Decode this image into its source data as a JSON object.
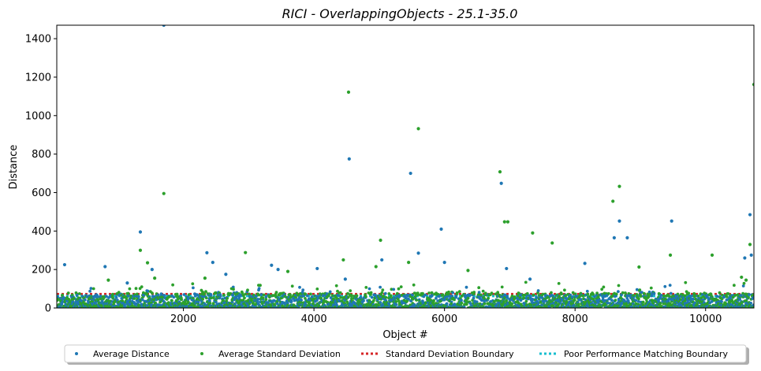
{
  "chart_data": {
    "type": "scatter",
    "title": "RICI - OverlappingObjects - 25.1-35.0",
    "xlabel": "Object #",
    "ylabel": "Distance",
    "xlim": [
      60,
      10740
    ],
    "ylim": [
      0,
      1470
    ],
    "x_ticks": [
      2000,
      4000,
      6000,
      8000,
      10000
    ],
    "y_ticks": [
      0,
      200,
      400,
      600,
      800,
      1000,
      1200,
      1400
    ],
    "grid": false,
    "legend_placement": "bottom-center",
    "n_points_per_series": 10700,
    "series": [
      {
        "name": "Average Distance",
        "kind": "scatter",
        "color": "#1f77b4",
        "baseline_band": [
          0,
          70
        ],
        "notable_points": [
          {
            "x": 180,
            "y": 225
          },
          {
            "x": 800,
            "y": 215
          },
          {
            "x": 1140,
            "y": 130
          },
          {
            "x": 1340,
            "y": 395
          },
          {
            "x": 1520,
            "y": 200
          },
          {
            "x": 1700,
            "y": 1470
          },
          {
            "x": 2360,
            "y": 287
          },
          {
            "x": 2450,
            "y": 237
          },
          {
            "x": 2650,
            "y": 175
          },
          {
            "x": 3350,
            "y": 222
          },
          {
            "x": 3450,
            "y": 200
          },
          {
            "x": 4050,
            "y": 205
          },
          {
            "x": 4480,
            "y": 150
          },
          {
            "x": 4540,
            "y": 775
          },
          {
            "x": 5040,
            "y": 250
          },
          {
            "x": 5480,
            "y": 700
          },
          {
            "x": 5600,
            "y": 285
          },
          {
            "x": 5950,
            "y": 410
          },
          {
            "x": 6000,
            "y": 237
          },
          {
            "x": 6870,
            "y": 648
          },
          {
            "x": 6950,
            "y": 205
          },
          {
            "x": 7310,
            "y": 150
          },
          {
            "x": 8150,
            "y": 232
          },
          {
            "x": 8600,
            "y": 365
          },
          {
            "x": 8680,
            "y": 452
          },
          {
            "x": 8800,
            "y": 365
          },
          {
            "x": 9480,
            "y": 452
          },
          {
            "x": 10680,
            "y": 485
          },
          {
            "x": 10700,
            "y": 275
          },
          {
            "x": 10600,
            "y": 260
          }
        ]
      },
      {
        "name": "Average Standard Deviation",
        "kind": "scatter",
        "color": "#2ca02c",
        "baseline_band": [
          0,
          80
        ],
        "notable_points": [
          {
            "x": 850,
            "y": 145
          },
          {
            "x": 1340,
            "y": 300
          },
          {
            "x": 1450,
            "y": 235
          },
          {
            "x": 1560,
            "y": 155
          },
          {
            "x": 1700,
            "y": 595
          },
          {
            "x": 2330,
            "y": 155
          },
          {
            "x": 2950,
            "y": 288
          },
          {
            "x": 3600,
            "y": 190
          },
          {
            "x": 4450,
            "y": 250
          },
          {
            "x": 4530,
            "y": 1122
          },
          {
            "x": 4950,
            "y": 215
          },
          {
            "x": 5020,
            "y": 352
          },
          {
            "x": 5450,
            "y": 237
          },
          {
            "x": 5600,
            "y": 932
          },
          {
            "x": 6360,
            "y": 195
          },
          {
            "x": 6850,
            "y": 708
          },
          {
            "x": 6920,
            "y": 448
          },
          {
            "x": 6970,
            "y": 448
          },
          {
            "x": 7350,
            "y": 390
          },
          {
            "x": 7650,
            "y": 338
          },
          {
            "x": 8580,
            "y": 555
          },
          {
            "x": 8680,
            "y": 632
          },
          {
            "x": 8980,
            "y": 213
          },
          {
            "x": 9460,
            "y": 275
          },
          {
            "x": 10100,
            "y": 275
          },
          {
            "x": 10680,
            "y": 330
          },
          {
            "x": 10740,
            "y": 1162
          },
          {
            "x": 10550,
            "y": 160
          },
          {
            "x": 10620,
            "y": 145
          }
        ]
      },
      {
        "name": "Standard Deviation Boundary",
        "kind": "hline",
        "color": "#d62728",
        "style": "dotted",
        "y": 72
      },
      {
        "name": "Poor Performance Matching Boundary",
        "kind": "hline",
        "color": "#17becf",
        "style": "dotted",
        "y": 62
      }
    ]
  }
}
